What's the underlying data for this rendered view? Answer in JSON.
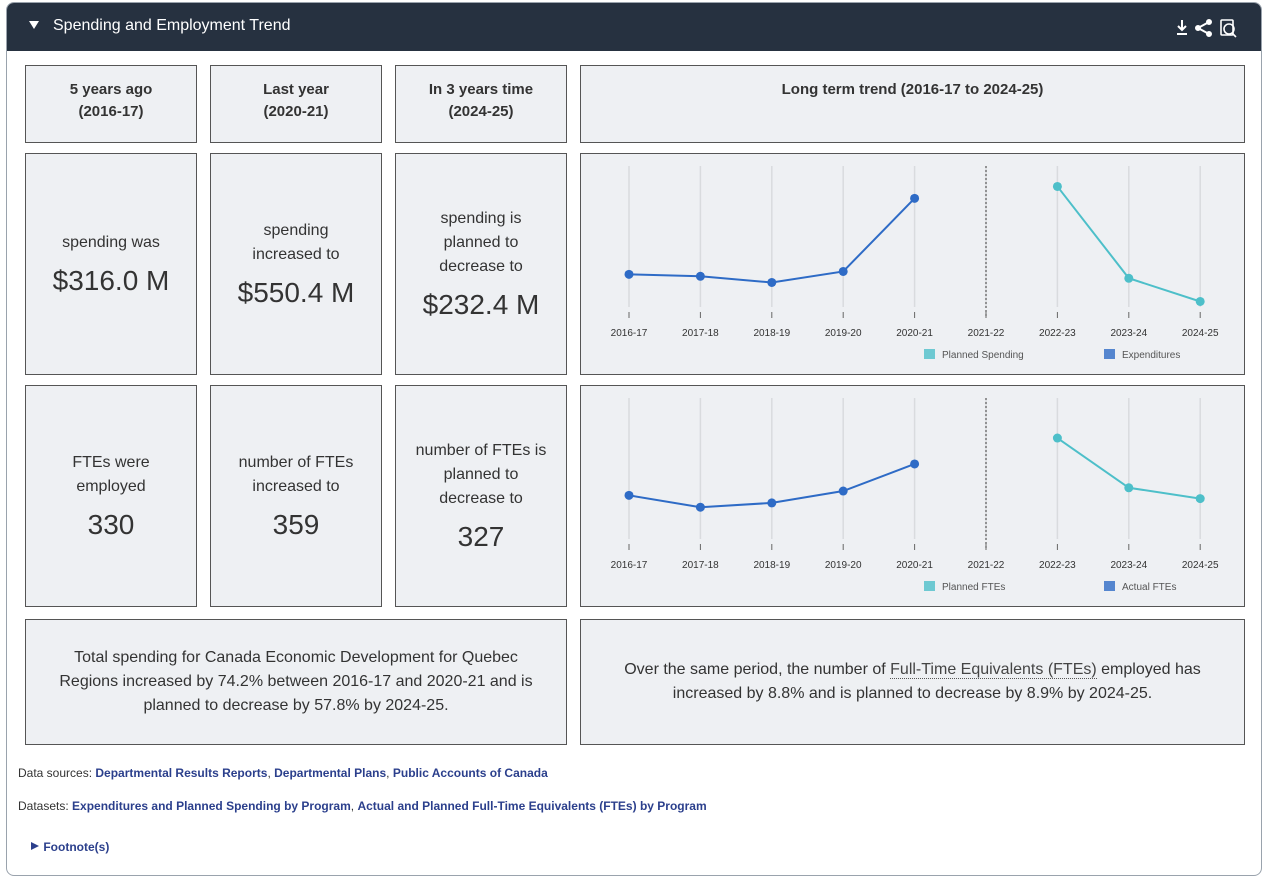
{
  "header": {
    "title": "Spending and Employment Trend"
  },
  "columns": [
    {
      "label": "5 years ago",
      "period": "(2016-17)"
    },
    {
      "label": "Last year",
      "period": "(2020-21)"
    },
    {
      "label": "In 3 years time",
      "period": "(2024-25)"
    },
    {
      "label": "Long term trend (2016-17 to 2024-25)"
    }
  ],
  "spending_tiles": [
    {
      "text": "spending was",
      "amount": "$316.0 M"
    },
    {
      "text": "spending increased to",
      "amount": "$550.4 M"
    },
    {
      "text": "spending is planned to decrease to",
      "amount": "$232.4 M"
    }
  ],
  "fte_tiles": [
    {
      "text": "FTEs were employed",
      "amount": 330
    },
    {
      "text": "number of FTEs increased to",
      "amount": 359
    },
    {
      "text": "number of FTEs is planned to decrease to",
      "amount": 327
    }
  ],
  "chart_data": [
    {
      "type": "line",
      "categories": [
        "2016-17",
        "2017-18",
        "2018-19",
        "2019-20",
        "2020-21",
        "2021-22",
        "2022-23",
        "2023-24",
        "2024-25"
      ],
      "series": [
        {
          "name": "Planned Spending",
          "color": "#4dbfc9",
          "values": [
            null,
            null,
            null,
            null,
            null,
            null,
            587,
            304,
            232.4
          ]
        },
        {
          "name": "Expenditures",
          "color": "#2e6bc6",
          "values": [
            316.0,
            310,
            291,
            325,
            550.4,
            null,
            null,
            null,
            null
          ]
        }
      ],
      "ylim": [
        200,
        650
      ],
      "grid": true,
      "legend": "bottom-right"
    },
    {
      "type": "line",
      "categories": [
        "2016-17",
        "2017-18",
        "2018-19",
        "2019-20",
        "2020-21",
        "2021-22",
        "2022-23",
        "2023-24",
        "2024-25"
      ],
      "series": [
        {
          "name": "Planned FTEs",
          "color": "#4dbfc9",
          "values": [
            null,
            null,
            null,
            null,
            null,
            null,
            383,
            337,
            327
          ]
        },
        {
          "name": "Actual FTEs",
          "color": "#2e6bc6",
          "values": [
            330,
            319,
            323,
            334,
            359,
            null,
            null,
            null,
            null
          ]
        }
      ],
      "ylim": [
        285,
        420
      ],
      "grid": true,
      "legend": "bottom-right"
    }
  ],
  "summary": {
    "spending": "Total spending for Canada Economic Development for Quebec Regions increased by 74.2% between 2016-17 and 2020-21 and is planned to decrease by 57.8%  by 2024-25.",
    "fte_before": "Over the same period, the number of",
    "fte_link": "Full-Time Equivalents (FTEs)",
    "fte_after": "employed has  increased by 8.8%  and is planned to decrease by 8.9% by 2024-25."
  },
  "footer": {
    "sources_label": "Data sources:",
    "sources": [
      "Departmental Results Reports",
      "Departmental Plans",
      "Public Accounts of Canada"
    ],
    "datasets_label": "Datasets:",
    "datasets": [
      "Expenditures and Planned Spending by Program",
      "Actual and Planned Full-Time Equivalents (FTEs) by Program"
    ],
    "separator": ",",
    "footnotes": "Footnote(s)"
  }
}
